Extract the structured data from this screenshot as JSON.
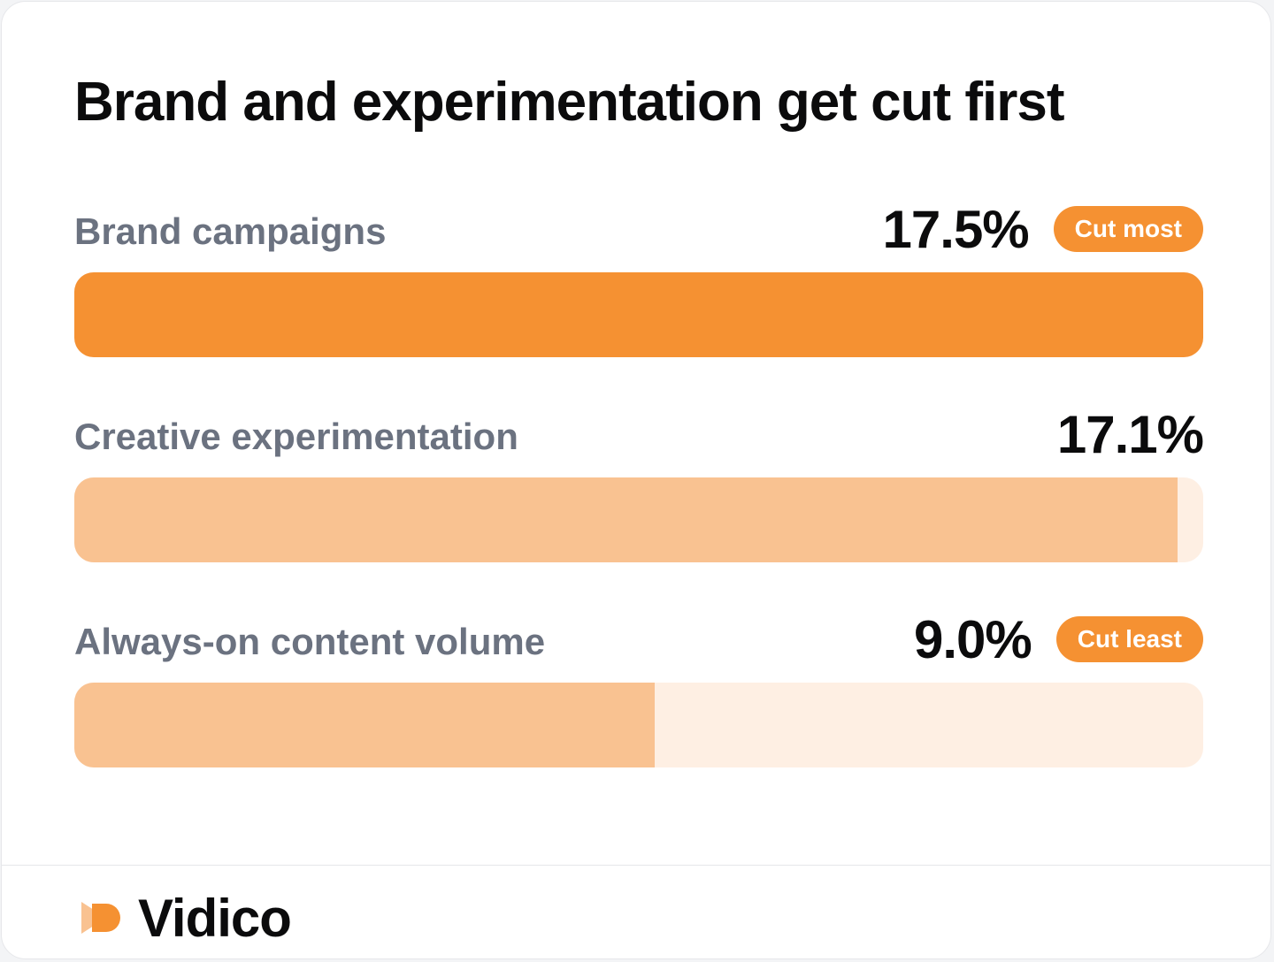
{
  "colors": {
    "accent": "#f59132",
    "fill_light": "#f9c291",
    "track": "#feefe3"
  },
  "chart_data": {
    "type": "bar",
    "orientation": "horizontal",
    "title": "Brand and experimentation get cut first",
    "categories": [
      "Brand campaigns",
      "Creative experimentation",
      "Always-on content volume"
    ],
    "values": [
      17.5,
      17.1,
      9.0
    ],
    "value_labels": [
      "17.5%",
      "17.1%",
      "9.0%"
    ],
    "badges": [
      "Cut most",
      "",
      "Cut least"
    ],
    "xlim": [
      0,
      17.5
    ],
    "grid": false,
    "legend": "none"
  },
  "footer": {
    "brand": "Vidico",
    "logo_icon": "vidico-logo-icon"
  }
}
